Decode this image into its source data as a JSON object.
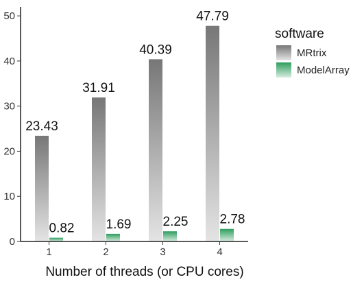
{
  "chart_data": {
    "type": "bar",
    "categories": [
      "1",
      "2",
      "3",
      "4"
    ],
    "series": [
      {
        "name": "MRtrix",
        "values": [
          23.43,
          31.91,
          40.39,
          47.79
        ],
        "labels": [
          "23.43",
          "31.91",
          "40.39",
          "47.79"
        ],
        "color_top": "#777777",
        "color_bottom": "#e4e4e4"
      },
      {
        "name": "ModelArray",
        "values": [
          0.82,
          1.69,
          2.25,
          2.78
        ],
        "labels": [
          "0.82",
          "1.69",
          "2.25",
          "2.78"
        ],
        "color_top": "#2e9e5e",
        "color_bottom": "#d8ece0"
      }
    ],
    "xlabel": "Number of threads (or CPU cores)",
    "ylabel": "",
    "ylim": [
      0,
      52
    ],
    "yticks": [
      0,
      10,
      20,
      30,
      40,
      50
    ],
    "ytick_labels": [
      "0",
      "10",
      "20",
      "30",
      "40",
      "50"
    ],
    "legend": {
      "title": "software",
      "position": "right"
    },
    "grid": false
  }
}
